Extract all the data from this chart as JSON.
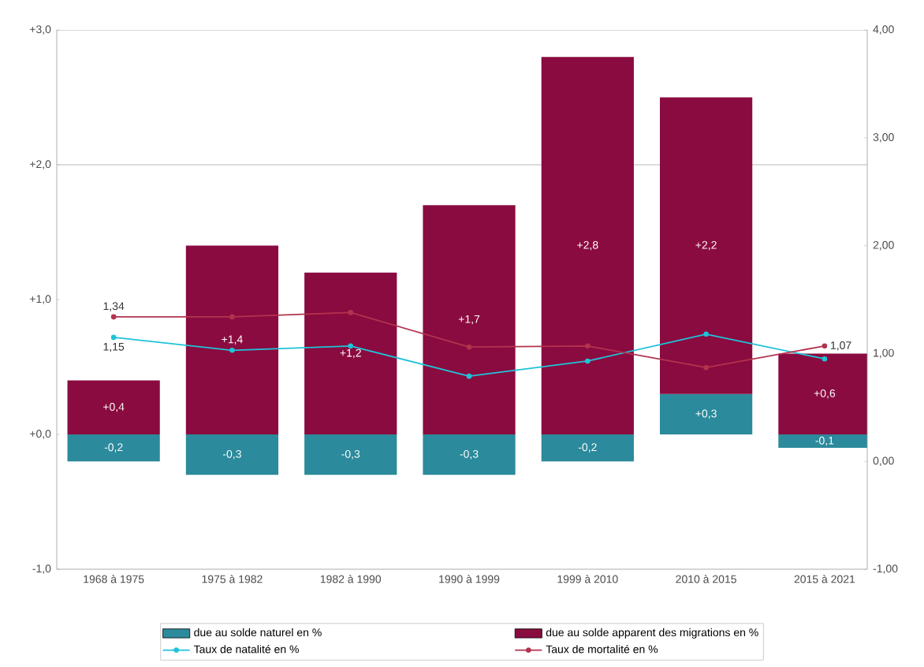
{
  "chart_data": {
    "type": "bar",
    "stacked": true,
    "legend": "bottom",
    "marker": "circle",
    "categories": [
      "1968 à 1975",
      "1975 à 1982",
      "1982 à 1990",
      "1990 à 1999",
      "1999 à 2010",
      "2010 à 2015",
      "2015 à 2021"
    ],
    "series": [
      {
        "name": "due au solde naturel en %",
        "color": "#2b8a9b",
        "values": [
          -0.2,
          -0.3,
          -0.3,
          -0.3,
          -0.2,
          0.3,
          -0.1
        ],
        "value_labels": [
          "-0,2",
          "-0,3",
          "-0,3",
          "-0,3",
          "-0,2",
          "+0,3",
          "-0,1"
        ]
      },
      {
        "name": "due au solde apparent des migrations en %",
        "color": "#8a0b3f",
        "values": [
          0.4,
          1.4,
          1.2,
          1.7,
          2.8,
          2.2,
          0.6
        ],
        "value_labels": [
          "+0,4",
          "+1,4",
          "+1,2",
          "+1,7",
          "+2,8",
          "+2,2",
          "+0,6"
        ]
      },
      {
        "name": "Taux de natalité en %",
        "type": "line",
        "axis": "y2",
        "color": "#1fc3d8",
        "values": [
          1.15,
          1.03,
          1.07,
          0.79,
          0.93,
          1.18,
          0.95
        ],
        "value_labels": [
          "1,15",
          null,
          null,
          null,
          null,
          null,
          null
        ]
      },
      {
        "name": "Taux de mortalité en %",
        "type": "line",
        "axis": "y2",
        "color": "#b3334f",
        "values": [
          1.34,
          1.34,
          1.38,
          1.06,
          1.07,
          0.87,
          1.07
        ],
        "value_labels": [
          "1,34",
          null,
          null,
          null,
          null,
          null,
          "1,07"
        ]
      }
    ],
    "ylim": [
      -1,
      3
    ],
    "yticks": [
      {
        "value": 3,
        "label": "+3,0"
      },
      {
        "value": 2,
        "label": "+2,0"
      },
      {
        "value": 1,
        "label": "+1,0"
      },
      {
        "value": 0,
        "label": "+0,0"
      },
      {
        "value": -1,
        "label": "-1,0"
      }
    ],
    "y2lim": [
      -1,
      4
    ],
    "y2ticks": [
      {
        "value": 4,
        "label": "4,00"
      },
      {
        "value": 3,
        "label": "3,00"
      },
      {
        "value": 2,
        "label": "2,00"
      },
      {
        "value": 1,
        "label": "1,00"
      },
      {
        "value": 0,
        "label": "0,00"
      },
      {
        "value": -1,
        "label": "-1,00"
      }
    ],
    "ref_lines": [
      {
        "axis": "y",
        "value": 2,
        "color": "#bbbbbb"
      }
    ]
  }
}
